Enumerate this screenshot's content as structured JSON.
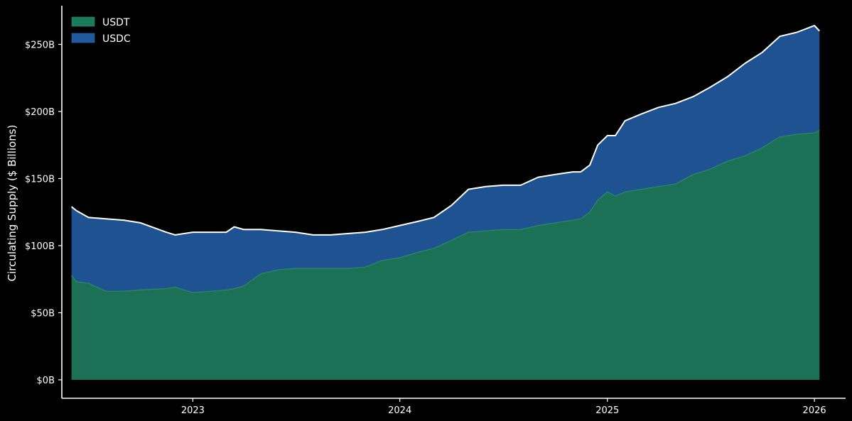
{
  "chart_data": {
    "type": "area",
    "stacked": true,
    "title": "",
    "xlabel": "",
    "ylabel": "Circulating Supply ($ Billions)",
    "ylim": [
      0,
      270
    ],
    "xlim": [
      "2022-05-15",
      "2026-02-25"
    ],
    "y_ticks": [
      {
        "value": 0,
        "label": "$0B"
      },
      {
        "value": 50,
        "label": "$50B"
      },
      {
        "value": 100,
        "label": "$100B"
      },
      {
        "value": 150,
        "label": "$150B"
      },
      {
        "value": 200,
        "label": "$200B"
      },
      {
        "value": 250,
        "label": "$250B"
      }
    ],
    "x_ticks": [
      {
        "value": "2023-01-01",
        "label": "2023"
      },
      {
        "value": "2024-01-01",
        "label": "2024"
      },
      {
        "value": "2025-01-01",
        "label": "2025"
      },
      {
        "value": "2026-01-01",
        "label": "2026"
      }
    ],
    "grid": false,
    "legend_position": "top-left",
    "colors": {
      "background": "#000000",
      "usdt": "#1c7055",
      "usdt_legend": "#1b7a5a",
      "usdc": "#1e5290",
      "usdc_legend": "#1f5a9e",
      "total_line": "#ffffff",
      "axis": "#ffffff"
    },
    "series": [
      {
        "name": "USDT",
        "x": [
          "2022-06-01",
          "2022-06-10",
          "2022-07-01",
          "2022-08-01",
          "2022-09-01",
          "2022-10-01",
          "2022-11-15",
          "2022-12-01",
          "2023-01-01",
          "2023-02-01",
          "2023-03-01",
          "2023-03-15",
          "2023-04-01",
          "2023-05-01",
          "2023-06-01",
          "2023-07-01",
          "2023-08-01",
          "2023-09-01",
          "2023-10-01",
          "2023-11-01",
          "2023-12-01",
          "2024-01-01",
          "2024-02-01",
          "2024-03-01",
          "2024-04-01",
          "2024-05-01",
          "2024-06-01",
          "2024-07-01",
          "2024-08-01",
          "2024-09-01",
          "2024-10-01",
          "2024-11-01",
          "2024-11-15",
          "2024-12-01",
          "2024-12-15",
          "2025-01-01",
          "2025-01-15",
          "2025-02-01",
          "2025-03-01",
          "2025-04-01",
          "2025-05-01",
          "2025-06-01",
          "2025-07-01",
          "2025-08-01",
          "2025-09-01",
          "2025-10-01",
          "2025-11-01",
          "2025-12-01",
          "2026-01-01",
          "2026-01-10"
        ],
        "values": [
          78,
          73,
          72,
          66,
          66,
          67,
          68,
          69,
          65,
          66,
          67,
          68,
          70,
          79,
          82,
          83,
          83,
          83,
          83,
          84,
          89,
          91,
          95,
          98,
          104,
          110,
          111,
          112,
          112,
          115,
          117,
          119,
          120,
          125,
          134,
          140,
          137,
          140,
          142,
          144,
          146,
          153,
          157,
          163,
          167,
          173,
          181,
          183,
          184,
          186
        ]
      },
      {
        "name": "USDC",
        "x": [
          "2022-06-01",
          "2022-06-10",
          "2022-07-01",
          "2022-08-01",
          "2022-09-01",
          "2022-10-01",
          "2022-11-15",
          "2022-12-01",
          "2023-01-01",
          "2023-02-01",
          "2023-03-01",
          "2023-03-15",
          "2023-04-01",
          "2023-05-01",
          "2023-06-01",
          "2023-07-01",
          "2023-08-01",
          "2023-09-01",
          "2023-10-01",
          "2023-11-01",
          "2023-12-01",
          "2024-01-01",
          "2024-02-01",
          "2024-03-01",
          "2024-04-01",
          "2024-05-01",
          "2024-06-01",
          "2024-07-01",
          "2024-08-01",
          "2024-09-01",
          "2024-10-01",
          "2024-11-01",
          "2024-11-15",
          "2024-12-01",
          "2024-12-15",
          "2025-01-01",
          "2025-01-15",
          "2025-02-01",
          "2025-03-01",
          "2025-04-01",
          "2025-05-01",
          "2025-06-01",
          "2025-07-01",
          "2025-08-01",
          "2025-09-01",
          "2025-10-01",
          "2025-11-01",
          "2025-12-01",
          "2026-01-01",
          "2026-01-10"
        ],
        "values": [
          51,
          53,
          49,
          54,
          53,
          50,
          42,
          39,
          45,
          44,
          43,
          46,
          42,
          33,
          29,
          27,
          25,
          25,
          26,
          26,
          23,
          24,
          23,
          23,
          26,
          32,
          33,
          33,
          33,
          36,
          36,
          36,
          35,
          35,
          41,
          42,
          45,
          53,
          56,
          59,
          60,
          58,
          61,
          63,
          69,
          71,
          75,
          76,
          80,
          74
        ]
      }
    ],
    "total_line": {
      "name": "Total",
      "show_in_legend": false
    },
    "legend": [
      {
        "label": "USDT",
        "color": "#1b7a5a"
      },
      {
        "label": "USDC",
        "color": "#1f5a9e"
      }
    ]
  }
}
